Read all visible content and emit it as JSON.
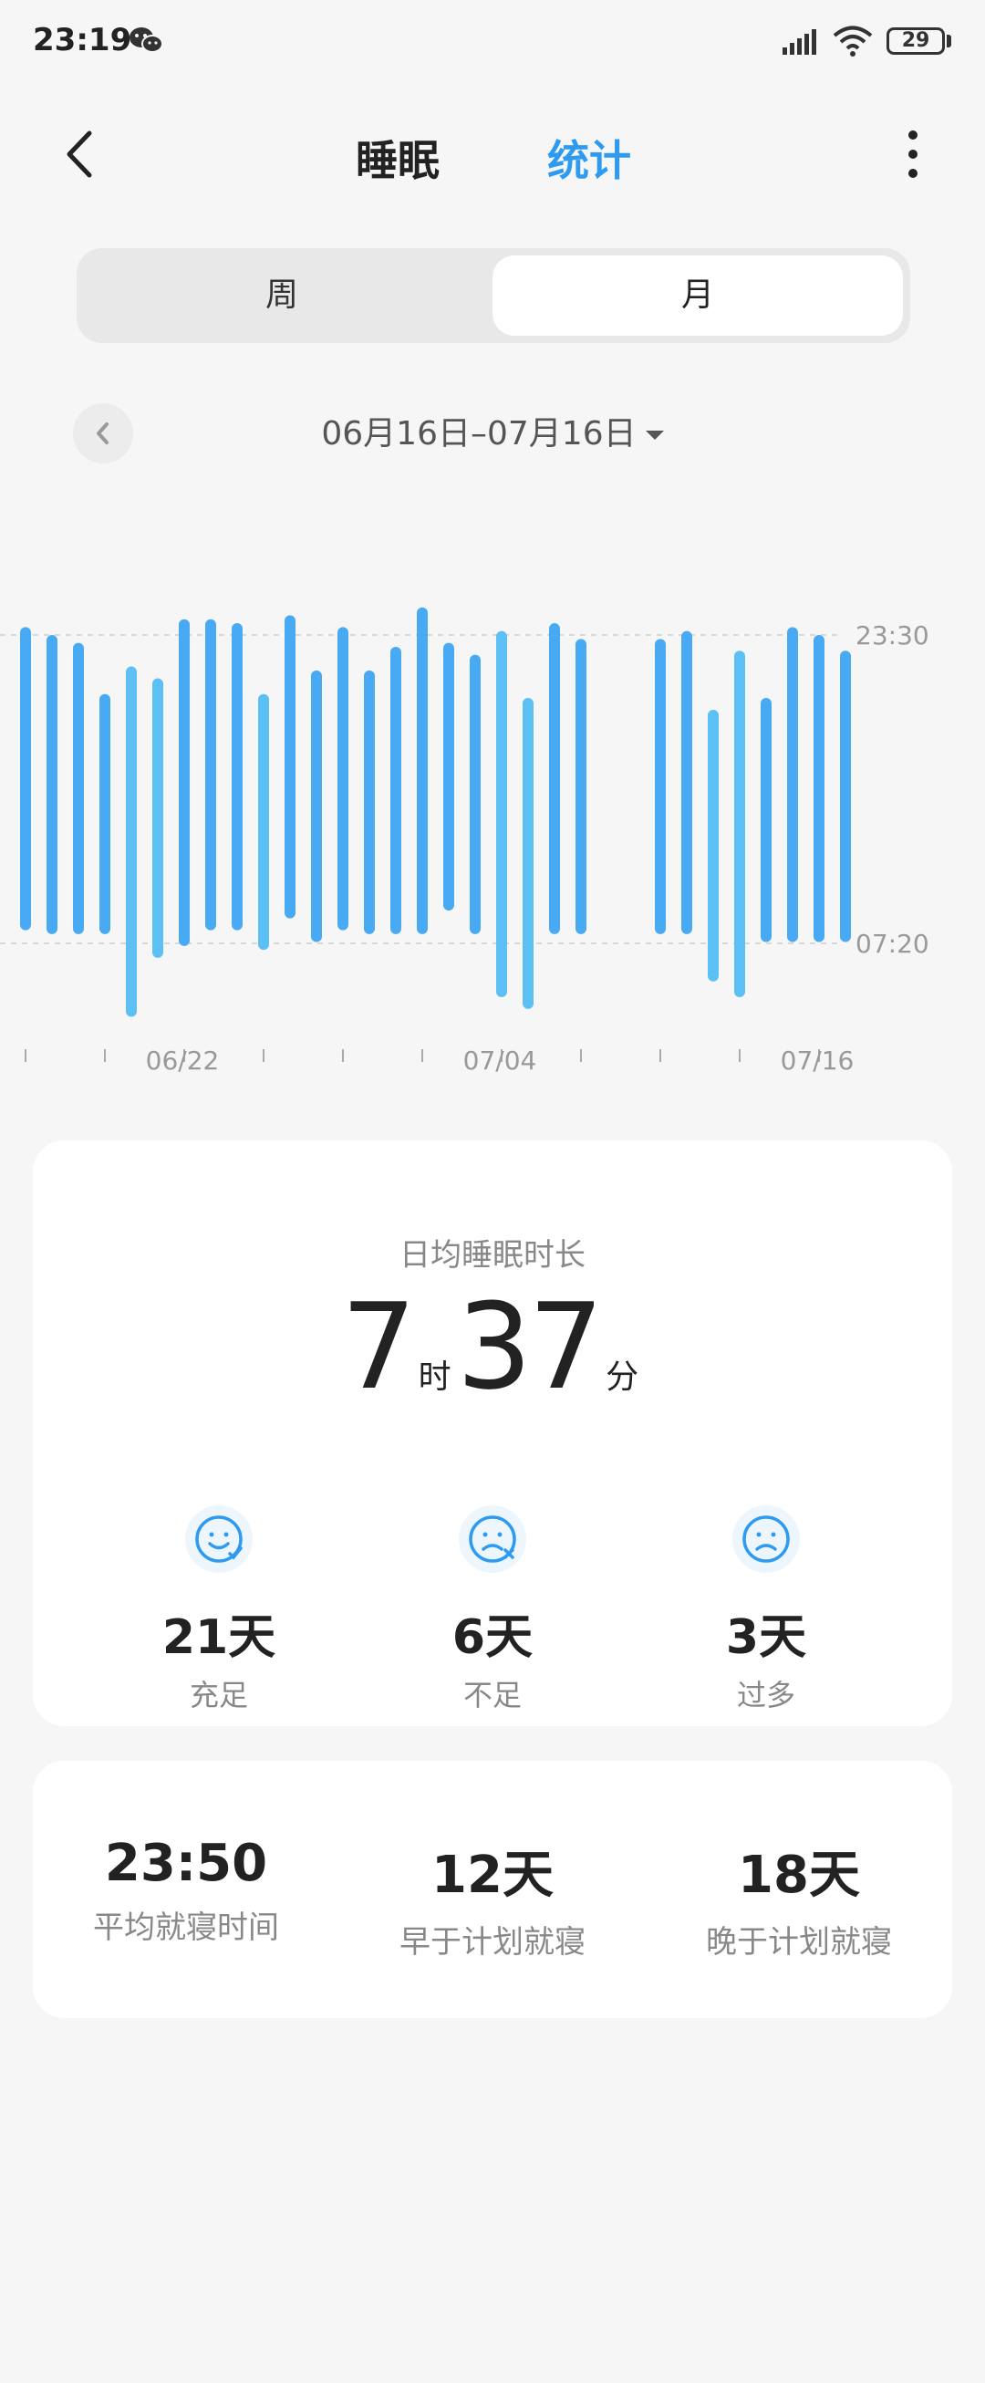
{
  "status_bar": {
    "time": "23:19",
    "battery": "29"
  },
  "header": {
    "tab_sleep": "睡眠",
    "tab_stats": "统计"
  },
  "segmented": {
    "week": "周",
    "month": "月"
  },
  "date_range": "06月16日–07月16日",
  "colors": {
    "accent": "#2e9bf0",
    "bar": "#48aaf3",
    "bar_light": "#5cc0f5"
  },
  "chart_data": {
    "type": "bar",
    "subtype": "floating-range",
    "y_labels": [
      "23:30",
      "07:20"
    ],
    "x_labels": [
      {
        "index": 6,
        "label": "06/22"
      },
      {
        "index": 18,
        "label": "07/04"
      },
      {
        "index": 30,
        "label": "07/16"
      }
    ],
    "note_units": "hours offset from 23:30 (negative = earlier, positive = later)",
    "bars": [
      {
        "day": 0,
        "start": -0.2,
        "end": 7.5
      },
      {
        "day": 1,
        "start": -0.0,
        "end": 7.6
      },
      {
        "day": 2,
        "start": 0.2,
        "end": 7.6
      },
      {
        "day": 3,
        "start": 1.5,
        "end": 7.6
      },
      {
        "day": 4,
        "start": 0.8,
        "end": 9.7
      },
      {
        "day": 5,
        "start": 1.1,
        "end": 8.2
      },
      {
        "day": 6,
        "start": -0.4,
        "end": 7.9
      },
      {
        "day": 7,
        "start": -0.4,
        "end": 7.5
      },
      {
        "day": 8,
        "start": -0.3,
        "end": 7.5
      },
      {
        "day": 9,
        "start": 1.5,
        "end": 8.0
      },
      {
        "day": 10,
        "start": -0.5,
        "end": 7.2
      },
      {
        "day": 11,
        "start": 0.9,
        "end": 7.8
      },
      {
        "day": 12,
        "start": -0.2,
        "end": 7.5
      },
      {
        "day": 13,
        "start": 0.9,
        "end": 7.6
      },
      {
        "day": 14,
        "start": 0.3,
        "end": 7.6
      },
      {
        "day": 15,
        "start": -0.7,
        "end": 7.6
      },
      {
        "day": 16,
        "start": 0.2,
        "end": 7.0
      },
      {
        "day": 17,
        "start": 0.5,
        "end": 7.6
      },
      {
        "day": 18,
        "start": -0.1,
        "end": 9.2
      },
      {
        "day": 19,
        "start": 1.6,
        "end": 9.5
      },
      {
        "day": 20,
        "start": -0.3,
        "end": 7.6
      },
      {
        "day": 21,
        "start": 0.1,
        "end": 7.6
      },
      {
        "day": 24,
        "start": 0.1,
        "end": 7.6
      },
      {
        "day": 25,
        "start": -0.1,
        "end": 7.6
      },
      {
        "day": 26,
        "start": 1.9,
        "end": 8.8
      },
      {
        "day": 27,
        "start": 0.4,
        "end": 9.2
      },
      {
        "day": 28,
        "start": 1.6,
        "end": 7.8
      },
      {
        "day": 29,
        "start": -0.2,
        "end": 7.8
      },
      {
        "day": 30,
        "start": 0.0,
        "end": 7.8
      },
      {
        "day": 31,
        "start": 0.4,
        "end": 7.8
      }
    ]
  },
  "summary": {
    "label": "日均睡眠时长",
    "hours": "7",
    "hours_unit": "时",
    "minutes": "37",
    "minutes_unit": "分",
    "stats": [
      {
        "value": "21天",
        "label": "充足",
        "icon": "happy-face-icon"
      },
      {
        "value": "6天",
        "label": "不足",
        "icon": "sad-face-x-icon"
      },
      {
        "value": "3天",
        "label": "过多",
        "icon": "frown-face-icon"
      }
    ]
  },
  "bedtime": {
    "items": [
      {
        "value": "23:50",
        "label": "平均就寝时间"
      },
      {
        "value": "12天",
        "label": "早于计划就寝"
      },
      {
        "value": "18天",
        "label": "晚于计划就寝"
      }
    ]
  }
}
